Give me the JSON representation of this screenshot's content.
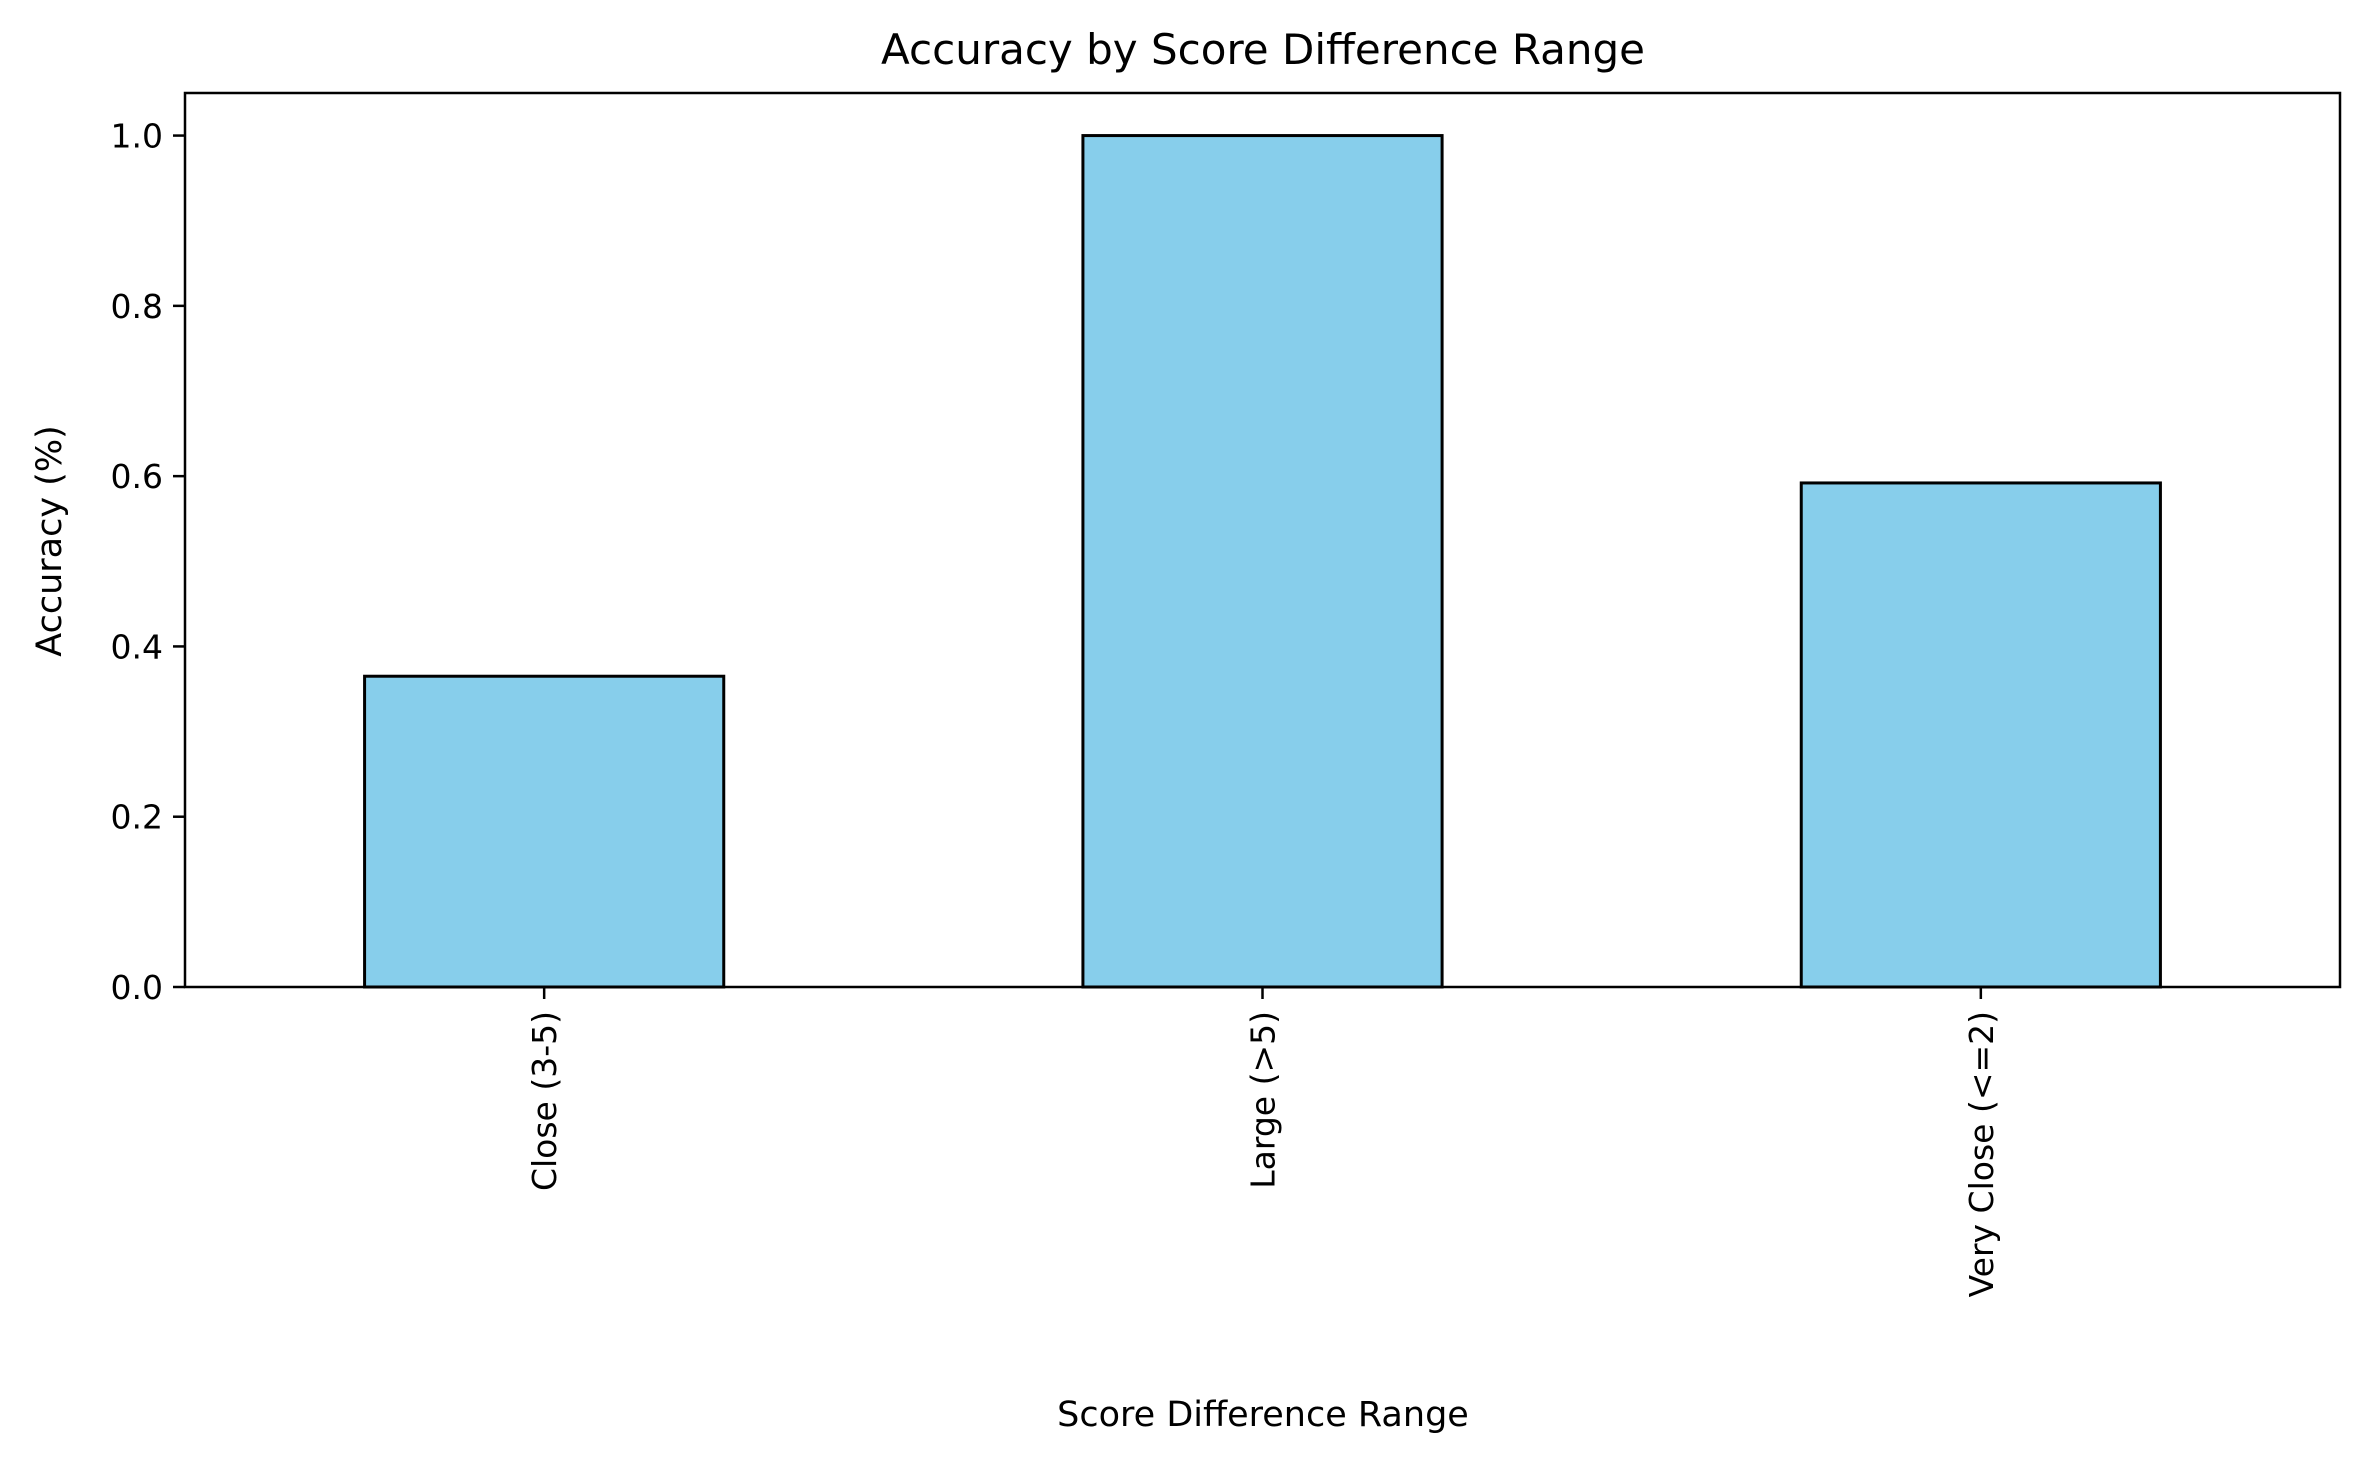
{
  "chart_data": {
    "type": "bar",
    "title": "Accuracy by Score Difference Range",
    "xlabel": "Score Difference Range",
    "ylabel": "Accuracy (%)",
    "categories": [
      "Close (3-5)",
      "Large (>5)",
      "Very Close (<=2)"
    ],
    "values": [
      0.365,
      1.0,
      0.592
    ],
    "ylim": [
      0,
      1.05
    ],
    "yticks": [
      0.0,
      0.2,
      0.4,
      0.6,
      0.8,
      1.0
    ],
    "ytick_labels": [
      "0.0",
      "0.2",
      "0.4",
      "0.6",
      "0.8",
      "1.0"
    ],
    "grid": false,
    "legend": "none",
    "colors": {
      "bar_fill": "#87ceeb",
      "bar_edge": "#000000",
      "axis": "#000000"
    }
  }
}
